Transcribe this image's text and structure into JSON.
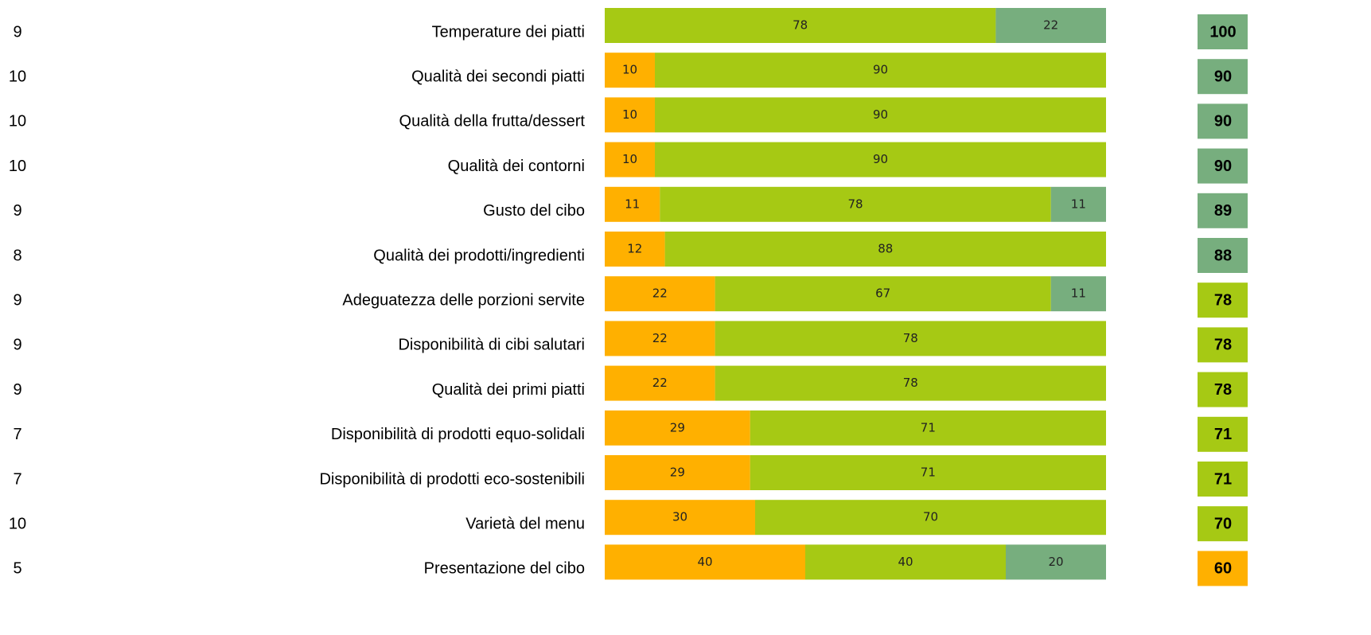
{
  "chart_data": {
    "type": "bar",
    "orientation": "horizontal",
    "stacked": true,
    "categories": [
      "Temperature dei piatti",
      "Qualità dei secondi piatti",
      "Qualità della frutta/dessert",
      "Qualità dei contorni",
      "Gusto del cibo",
      "Qualità dei prodotti/ingredienti",
      "Adeguatezza delle porzioni servite",
      "Disponibilità di cibi salutari",
      "Qualità dei primi piatti",
      "Disponibilità di prodotti equo-solidali",
      "Disponibilità di prodotti eco-sostenibili",
      "Varietà del menu",
      "Presentazione del cibo"
    ],
    "counts": [
      9,
      10,
      10,
      10,
      9,
      8,
      9,
      9,
      9,
      7,
      7,
      10,
      5
    ],
    "series": [
      {
        "color": "#ffb000",
        "values": [
          null,
          10,
          10,
          10,
          11,
          12,
          22,
          22,
          22,
          29,
          29,
          30,
          40
        ]
      },
      {
        "color": "#a6c914",
        "values": [
          78,
          90,
          90,
          90,
          78,
          88,
          67,
          78,
          78,
          71,
          71,
          70,
          40
        ]
      },
      {
        "color": "#77ae7e",
        "values": [
          22,
          null,
          null,
          null,
          11,
          null,
          11,
          null,
          null,
          null,
          null,
          null,
          20
        ]
      }
    ],
    "scores": [
      100,
      90,
      90,
      90,
      89,
      88,
      78,
      78,
      78,
      71,
      71,
      70,
      60
    ],
    "score_colors": [
      "#77ae7e",
      "#77ae7e",
      "#77ae7e",
      "#77ae7e",
      "#77ae7e",
      "#77ae7e",
      "#a6c914",
      "#a6c914",
      "#a6c914",
      "#a6c914",
      "#a6c914",
      "#a6c914",
      "#ffb000"
    ],
    "xlim": [
      0,
      100
    ]
  }
}
